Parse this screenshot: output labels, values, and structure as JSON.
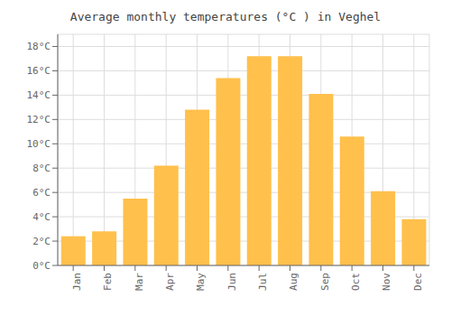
{
  "chart_data": {
    "type": "bar",
    "title": "Average monthly temperatures (°C ) in Veghel",
    "categories": [
      "Jan",
      "Feb",
      "Mar",
      "Apr",
      "May",
      "Jun",
      "Jul",
      "Aug",
      "Sep",
      "Oct",
      "Nov",
      "Dec"
    ],
    "values": [
      2.4,
      2.8,
      5.5,
      8.2,
      12.8,
      15.4,
      17.2,
      17.2,
      14.1,
      10.6,
      6.1,
      3.8
    ],
    "color": "#FFC04C",
    "ylim": [
      0,
      19
    ],
    "yticks": [
      {
        "value": 0,
        "label": "0°C"
      },
      {
        "value": 2,
        "label": "2°C"
      },
      {
        "value": 4,
        "label": "4°C"
      },
      {
        "value": 6,
        "label": "6°C"
      },
      {
        "value": 8,
        "label": "8°C"
      },
      {
        "value": 10,
        "label": "10°C"
      },
      {
        "value": 12,
        "label": "12°C"
      },
      {
        "value": 14,
        "label": "14°C"
      },
      {
        "value": 16,
        "label": "16°C"
      },
      {
        "value": 18,
        "label": "18°C"
      }
    ],
    "grid": true
  }
}
